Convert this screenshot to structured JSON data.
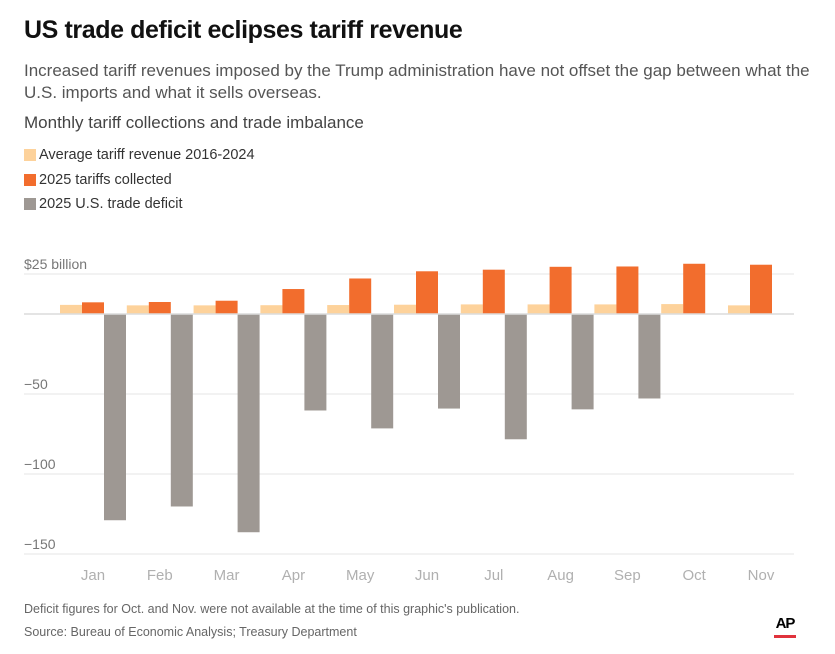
{
  "header": {
    "title": "US trade deficit eclipses tariff revenue",
    "subtitle": "Increased tariff revenues imposed by the Trump administration have not offset the gap between what the U.S. imports and what it sells overseas.",
    "chart_heading": "Monthly tariff collections and trade imbalance"
  },
  "colors": {
    "average": "#fdd29b",
    "tariffs": "#f26d2d",
    "deficit": "#9e9893",
    "gridline": "#e6e6e6"
  },
  "chart_data": {
    "type": "bar",
    "title": "Monthly tariff collections and trade imbalance",
    "xlabel": "",
    "ylabel": "",
    "unit_label": "$25 billion",
    "ylim": [
      -150,
      25
    ],
    "yticks": [
      {
        "value": 25,
        "label": "$25 billion"
      },
      {
        "value": 0,
        "label": ""
      },
      {
        "value": -50,
        "label": "−50"
      },
      {
        "value": -100,
        "label": "−100"
      },
      {
        "value": -150,
        "label": "−150"
      }
    ],
    "grid": true,
    "legend_position": "top-left",
    "categories": [
      "Jan",
      "Feb",
      "Mar",
      "Apr",
      "May",
      "Jun",
      "Jul",
      "Aug",
      "Sep",
      "Oct",
      "Nov"
    ],
    "series": [
      {
        "name": "Average tariff revenue 2016-2024",
        "key": "average",
        "values": [
          5.7,
          5.4,
          5.4,
          5.5,
          5.6,
          5.8,
          6.0,
          6.0,
          6.0,
          6.2,
          5.4
        ]
      },
      {
        "name": "2025 tariffs collected",
        "key": "tariffs",
        "values": [
          7.3,
          7.5,
          8.3,
          15.6,
          22.2,
          26.7,
          27.7,
          29.5,
          29.7,
          31.4,
          30.8
        ]
      },
      {
        "name": "2025 U.S. trade deficit",
        "key": "deficit",
        "values": [
          -128.9,
          -120.3,
          -136.4,
          -60.3,
          -71.5,
          -59.1,
          -78.3,
          -59.6,
          -52.8,
          null,
          null
        ]
      }
    ]
  },
  "footer": {
    "note": "Deficit figures for Oct. and Nov. were not available at the time of this graphic's publication.",
    "source": "Source: Bureau of Economic Analysis; Treasury Department",
    "logo": "AP"
  }
}
